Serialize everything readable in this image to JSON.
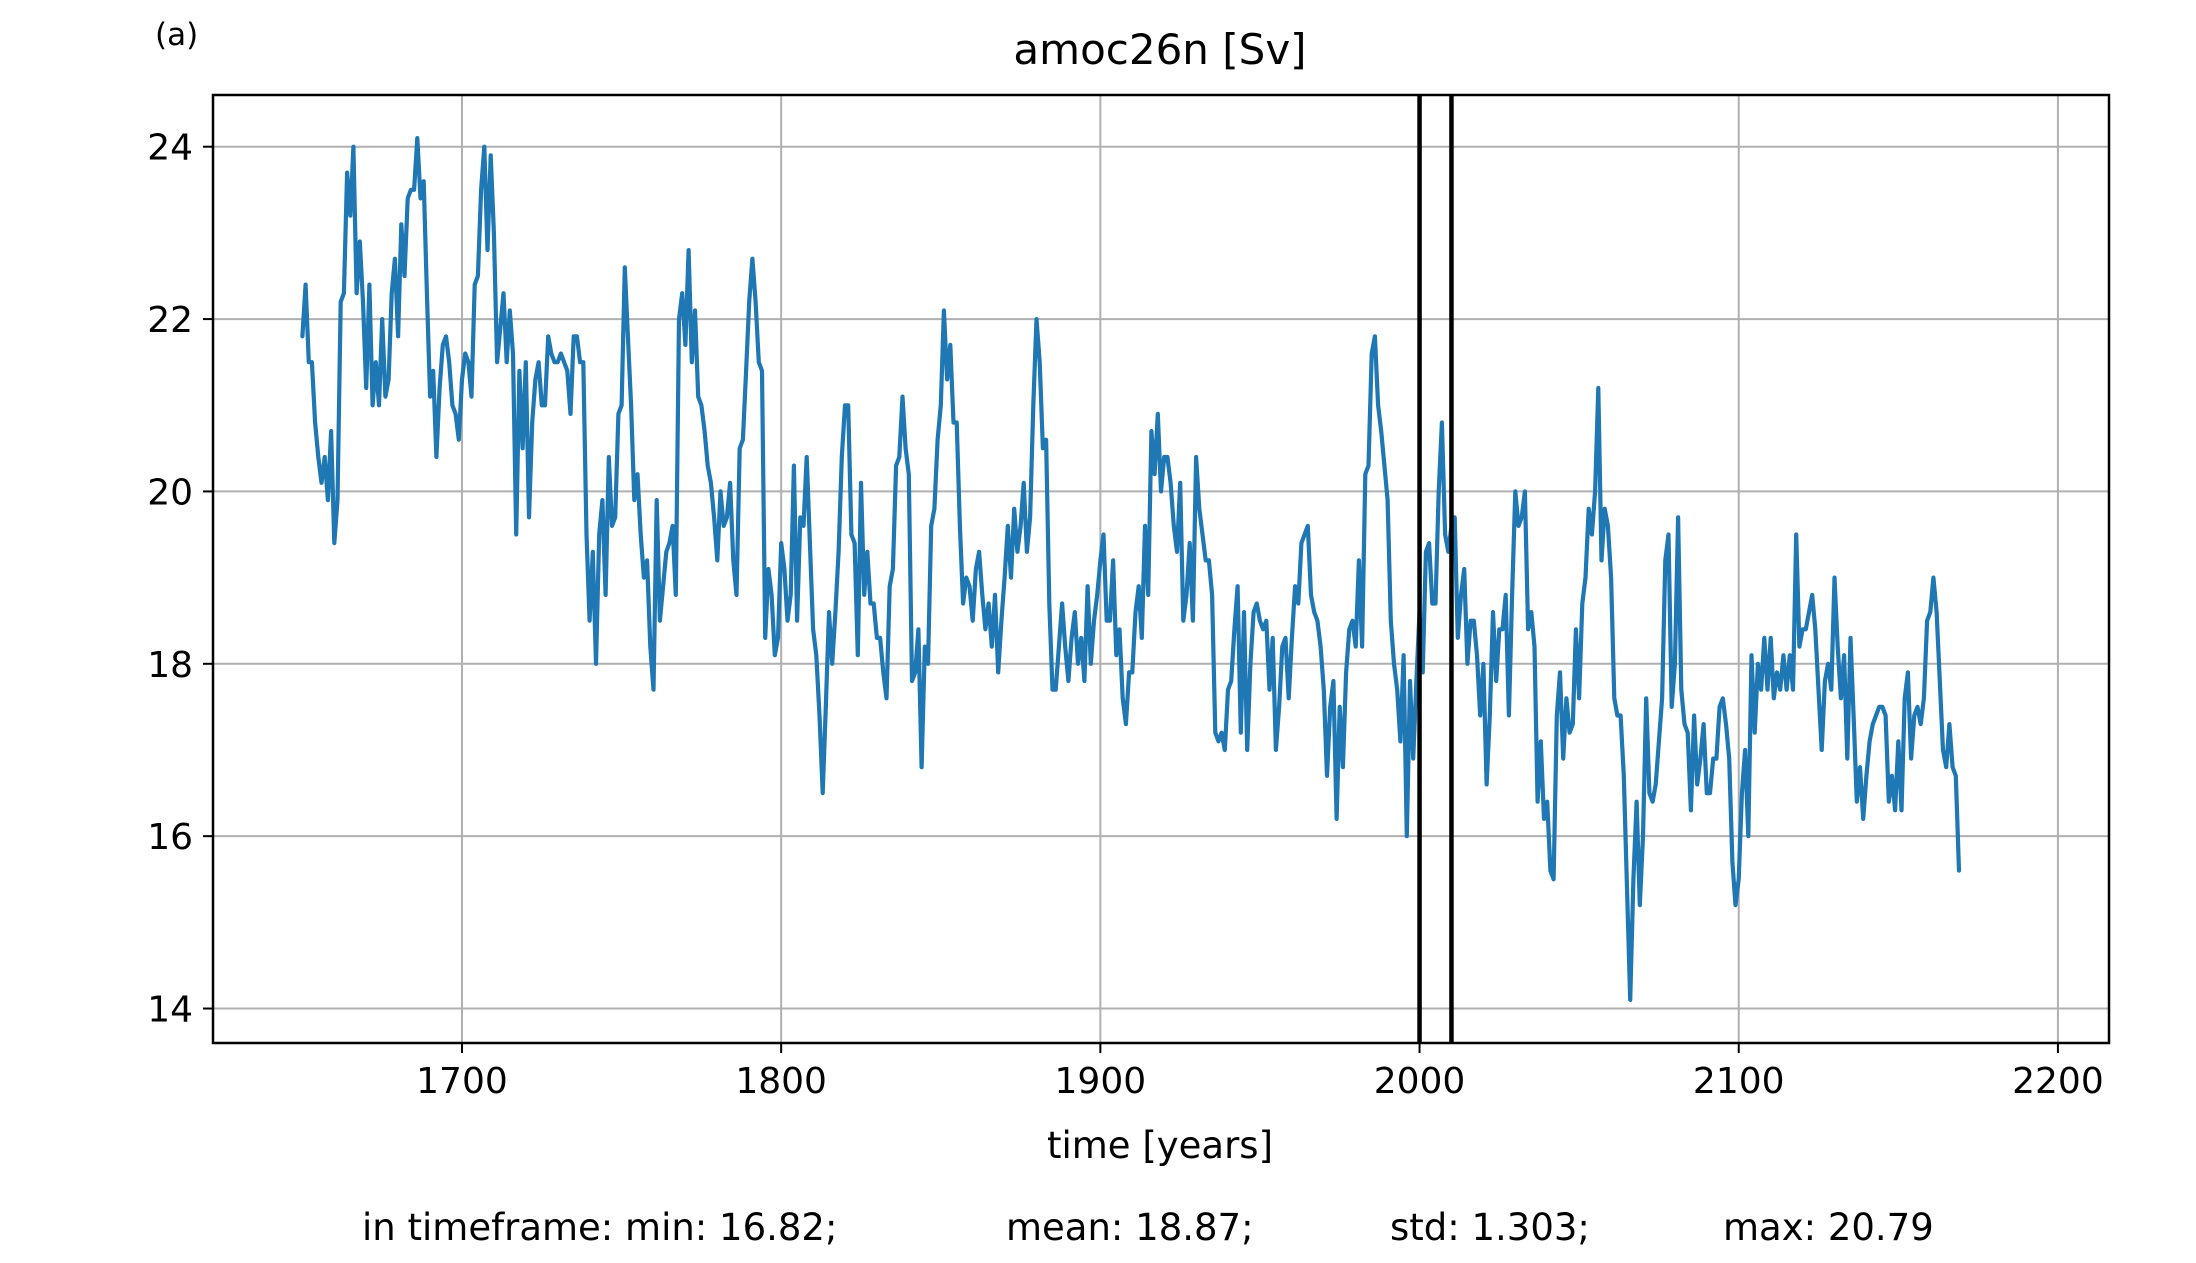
{
  "chart_data": {
    "type": "line",
    "panel_label": "(a)",
    "title": "amoc26n [Sv]",
    "xlabel": "time [years]",
    "ylabel": "",
    "xlim": [
      1622,
      2216
    ],
    "ylim": [
      13.6,
      24.6
    ],
    "xticks": [
      1700,
      1800,
      1900,
      2000,
      2100,
      2200
    ],
    "yticks": [
      14,
      16,
      18,
      20,
      22,
      24
    ],
    "grid": true,
    "legend": "none",
    "vlines": [
      2000,
      2010
    ],
    "colors": {
      "series": "#1f77b4",
      "vline": "#000000",
      "grid": "#b0b0b0"
    },
    "stats_line": [
      "in timeframe: min: 16.82;",
      "mean: 18.87;",
      "std: 1.303;",
      "max: 20.79"
    ],
    "series": [
      {
        "x_start": 1650,
        "x_step": 1,
        "values": [
          21.8,
          22.4,
          21.5,
          21.5,
          20.8,
          20.4,
          20.1,
          20.4,
          19.9,
          20.7,
          19.4,
          19.9,
          22.2,
          22.3,
          23.7,
          23.2,
          24.0,
          22.3,
          22.9,
          22.2,
          21.2,
          22.4,
          21.0,
          21.5,
          21.0,
          22.0,
          21.1,
          21.3,
          22.3,
          22.7,
          21.8,
          23.1,
          22.5,
          23.4,
          23.5,
          23.5,
          24.1,
          23.4,
          23.6,
          22.3,
          21.1,
          21.4,
          20.4,
          21.2,
          21.7,
          21.8,
          21.5,
          21.0,
          20.9,
          20.6,
          21.3,
          21.6,
          21.5,
          21.1,
          22.4,
          22.5,
          23.5,
          24.0,
          22.8,
          23.9,
          23.0,
          21.5,
          21.9,
          22.3,
          21.5,
          22.1,
          21.6,
          19.5,
          21.4,
          20.5,
          21.5,
          19.7,
          20.8,
          21.3,
          21.5,
          21.0,
          21.0,
          21.8,
          21.6,
          21.5,
          21.5,
          21.6,
          21.5,
          21.4,
          20.9,
          21.8,
          21.8,
          21.5,
          21.5,
          19.5,
          18.5,
          19.3,
          18.0,
          19.5,
          19.9,
          18.8,
          20.4,
          19.6,
          19.7,
          20.9,
          21.0,
          22.6,
          21.8,
          21.0,
          19.9,
          20.2,
          19.5,
          19.0,
          19.2,
          18.2,
          17.7,
          19.9,
          18.5,
          18.9,
          19.3,
          19.4,
          19.6,
          18.8,
          22.0,
          22.3,
          21.7,
          22.8,
          21.5,
          22.1,
          21.1,
          21.0,
          20.7,
          20.3,
          20.1,
          19.7,
          19.2,
          20.0,
          19.6,
          19.7,
          20.1,
          19.2,
          18.8,
          20.5,
          20.6,
          21.4,
          22.2,
          22.7,
          22.2,
          21.5,
          21.4,
          18.3,
          19.1,
          18.8,
          18.1,
          18.3,
          19.4,
          19.1,
          18.5,
          18.8,
          20.3,
          18.5,
          19.7,
          19.6,
          20.4,
          19.4,
          18.4,
          18.1,
          17.4,
          16.5,
          17.5,
          18.6,
          18.0,
          18.6,
          19.3,
          20.4,
          21.0,
          21.0,
          19.5,
          19.4,
          18.1,
          20.1,
          18.8,
          19.3,
          18.7,
          18.7,
          18.3,
          18.3,
          17.9,
          17.6,
          18.9,
          19.1,
          20.3,
          20.4,
          21.1,
          20.5,
          20.2,
          17.8,
          17.9,
          18.4,
          16.8,
          18.2,
          18.0,
          19.6,
          19.8,
          20.6,
          21.0,
          22.1,
          21.3,
          21.7,
          20.8,
          20.8,
          19.6,
          18.7,
          19.0,
          18.9,
          18.5,
          19.1,
          19.3,
          18.8,
          18.4,
          18.7,
          18.2,
          18.8,
          17.9,
          18.5,
          19.0,
          19.6,
          19.0,
          19.8,
          19.3,
          19.6,
          20.1,
          19.3,
          19.7,
          21.0,
          22.0,
          21.5,
          20.5,
          20.6,
          18.7,
          17.7,
          17.7,
          18.2,
          18.7,
          18.2,
          17.8,
          18.3,
          18.6,
          18.0,
          18.3,
          17.8,
          18.9,
          18.0,
          18.5,
          18.8,
          19.2,
          19.5,
          18.5,
          18.5,
          19.2,
          18.1,
          18.4,
          17.6,
          17.3,
          17.9,
          17.9,
          18.6,
          18.9,
          18.3,
          19.6,
          18.8,
          20.7,
          20.2,
          20.9,
          20.0,
          20.4,
          20.4,
          20.1,
          19.6,
          19.3,
          20.1,
          18.5,
          18.8,
          19.4,
          18.5,
          20.4,
          19.8,
          19.5,
          19.2,
          19.2,
          18.8,
          17.2,
          17.1,
          17.2,
          17.0,
          17.7,
          17.8,
          18.4,
          18.9,
          17.2,
          18.6,
          17.0,
          18.0,
          18.6,
          18.7,
          18.5,
          18.4,
          18.5,
          17.7,
          18.3,
          17.0,
          17.5,
          18.2,
          18.3,
          17.6,
          18.3,
          18.9,
          18.7,
          19.4,
          19.5,
          19.6,
          18.8,
          18.6,
          18.5,
          18.2,
          17.7,
          16.7,
          17.5,
          17.8,
          16.2,
          17.5,
          16.8,
          17.9,
          18.4,
          18.5,
          18.2,
          19.2,
          18.2,
          20.2,
          20.3,
          21.6,
          21.8,
          21.0,
          20.7,
          20.3,
          19.9,
          18.5,
          18.0,
          17.7,
          17.1,
          18.1,
          16.0,
          17.8,
          16.9,
          17.8,
          18.6,
          17.9,
          19.3,
          19.4,
          18.7,
          18.7,
          20.0,
          20.8,
          19.5,
          19.3,
          19.6,
          19.7,
          18.3,
          18.8,
          19.1,
          18.0,
          18.5,
          18.5,
          18.1,
          17.4,
          18.0,
          16.6,
          17.4,
          18.6,
          17.8,
          18.4,
          18.4,
          18.8,
          17.4,
          18.8,
          20.0,
          19.6,
          19.7,
          20.0,
          18.4,
          18.6,
          18.2,
          16.4,
          17.1,
          16.2,
          16.4,
          15.6,
          15.5,
          17.4,
          17.9,
          16.9,
          17.6,
          17.2,
          17.3,
          18.4,
          17.6,
          18.7,
          19.0,
          19.8,
          19.5,
          20.0,
          21.2,
          19.2,
          19.8,
          19.6,
          19.0,
          17.6,
          17.4,
          17.4,
          16.7,
          15.4,
          14.1,
          15.5,
          16.4,
          15.2,
          16.0,
          17.6,
          16.5,
          16.4,
          16.6,
          17.1,
          17.6,
          19.2,
          19.5,
          17.5,
          18.0,
          19.7,
          17.7,
          17.3,
          17.2,
          16.3,
          17.4,
          16.6,
          16.9,
          17.3,
          16.5,
          16.5,
          16.9,
          16.9,
          17.5,
          17.6,
          17.3,
          16.9,
          15.7,
          15.2,
          15.5,
          16.5,
          17.0,
          16.0,
          18.1,
          17.2,
          18.0,
          17.7,
          18.3,
          17.7,
          18.3,
          17.6,
          17.9,
          17.7,
          18.1,
          17.7,
          18.1,
          17.7,
          19.5,
          18.2,
          18.4,
          18.4,
          18.6,
          18.8,
          18.4,
          17.7,
          17.0,
          17.8,
          18.0,
          17.7,
          19.0,
          18.2,
          17.6,
          18.1,
          16.9,
          18.3,
          17.4,
          16.4,
          16.8,
          16.2,
          16.7,
          17.1,
          17.3,
          17.4,
          17.5,
          17.5,
          17.4,
          16.4,
          16.7,
          16.3,
          17.1,
          16.3,
          17.6,
          17.9,
          16.9,
          17.4,
          17.5,
          17.3,
          17.6,
          18.5,
          18.6,
          19.0,
          18.6,
          17.8,
          17.0,
          16.8,
          17.3,
          16.8,
          16.7,
          15.6
        ]
      }
    ]
  }
}
